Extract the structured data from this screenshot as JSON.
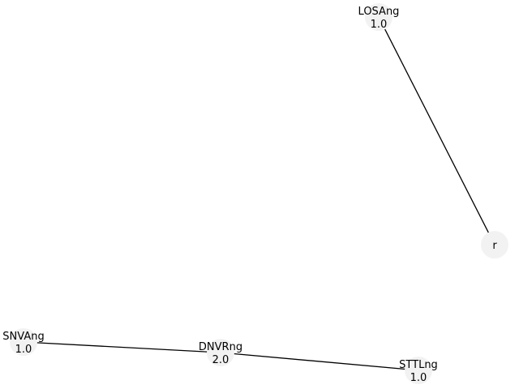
{
  "graph": {
    "node_fill": "#f2f2f2",
    "edge_color": "#000000",
    "text_color": "#000000",
    "nodes": [
      {
        "id": "LOSAng",
        "name": "LOSAng",
        "value": "1.0"
      },
      {
        "id": "r",
        "name": "r",
        "value": ""
      },
      {
        "id": "SNVAng",
        "name": "SNVAng",
        "value": "1.0"
      },
      {
        "id": "DNVRng",
        "name": "DNVRng",
        "value": "2.0"
      },
      {
        "id": "STTLng",
        "name": "STTLng",
        "value": "1.0"
      }
    ],
    "edges": [
      {
        "source": "LOSAng",
        "target": "r"
      },
      {
        "source": "SNVAng",
        "target": "DNVRng"
      },
      {
        "source": "DNVRng",
        "target": "STTLng"
      }
    ]
  }
}
